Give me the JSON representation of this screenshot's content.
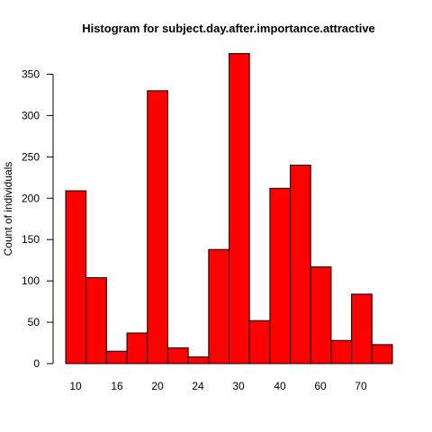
{
  "chart_data": {
    "type": "bar",
    "title": "Histogram for subject.day.after.importance.attractive",
    "xlabel": "",
    "ylabel": "Count of individuals",
    "bar_color": "#ff0000",
    "x_tick_labels": [
      "10",
      "16",
      "20",
      "24",
      "30",
      "40",
      "60",
      "70"
    ],
    "y_ticks": [
      0,
      50,
      100,
      150,
      200,
      250,
      300,
      350
    ],
    "ylim": [
      0,
      375
    ],
    "values": [
      209,
      104,
      15,
      37,
      330,
      19,
      8,
      138,
      375,
      52,
      212,
      240,
      117,
      28,
      84,
      23
    ]
  }
}
